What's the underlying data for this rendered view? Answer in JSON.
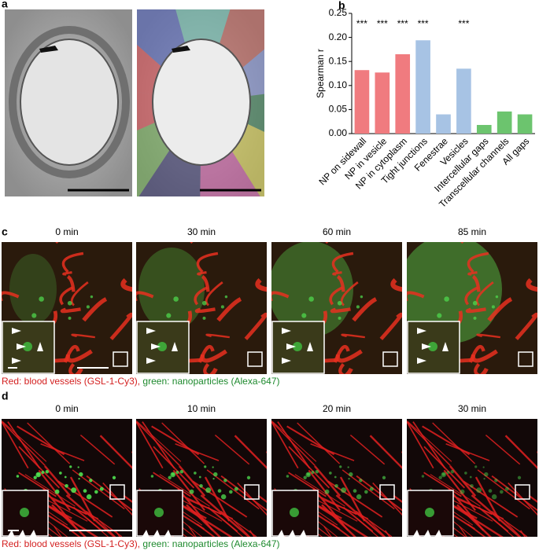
{
  "panel_labels": [
    "a",
    "b",
    "c",
    "d"
  ],
  "panel_c": {
    "times": [
      "0 min",
      "30 min",
      "60 min",
      "85 min"
    ],
    "caption": {
      "red": "Red: blood vessels (GSL-1-Cy3),",
      "green": "green: nanoparticles (Alexa-647)"
    }
  },
  "panel_d": {
    "times": [
      "0 min",
      "10 min",
      "20 min",
      "30 min"
    ],
    "caption": {
      "red": "Red: blood vessels (GSL-1-Cy3),",
      "green": "green: nanoparticles (Alexa-647)"
    }
  },
  "chart_data": {
    "type": "bar",
    "ylabel": "Spearman r",
    "categories": [
      "NP on sidewall",
      "NP in vesicle",
      "NP in cytoplasm",
      "Tight junctions",
      "Fenestrae",
      "Vesicles",
      "Intercellular gaps",
      "Transcellular channels",
      "All gaps"
    ],
    "values": [
      0.132,
      0.127,
      0.165,
      0.194,
      0.04,
      0.135,
      0.018,
      0.046,
      0.04
    ],
    "colors": [
      "#f07b7f",
      "#f07b7f",
      "#f07b7f",
      "#a7c3e4",
      "#a7c3e4",
      "#a7c3e4",
      "#6cc46e",
      "#6cc46e",
      "#6cc46e"
    ],
    "annotations": [
      "***",
      "***",
      "***",
      "***",
      null,
      "***",
      null,
      null,
      null
    ],
    "ylim": [
      0,
      0.25
    ],
    "yticks": [
      {
        "value": 0,
        "label": "0.00"
      },
      {
        "value": 0.05,
        "label": "0.05"
      },
      {
        "value": 0.1,
        "label": "0.10"
      },
      {
        "value": 0.15,
        "label": "0.15"
      },
      {
        "value": 0.2,
        "label": "0.20"
      },
      {
        "value": 0.25,
        "label": "0.25"
      }
    ]
  }
}
